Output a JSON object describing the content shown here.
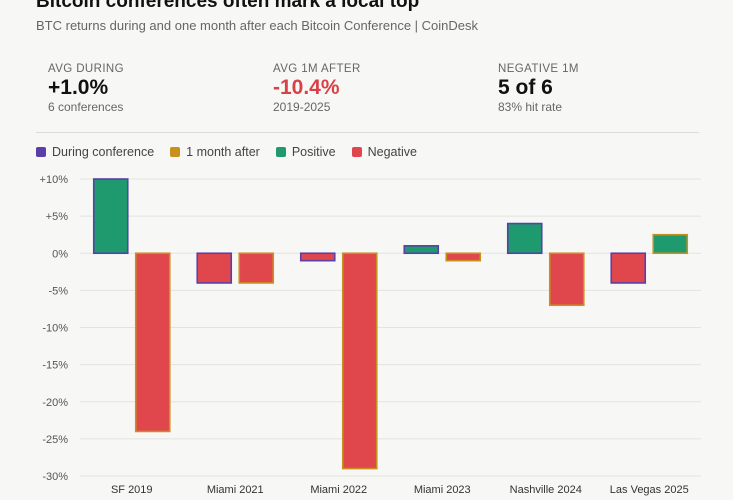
{
  "header": {
    "title": "Bitcoin conferences often mark a local top",
    "subtitle": "BTC returns during and one month after each Bitcoin Conference | CoinDesk"
  },
  "stats": [
    {
      "label": "AVG DURING",
      "value": "+1.0%",
      "sub": "6 conferences",
      "color": "#111111"
    },
    {
      "label": "AVG 1M AFTER",
      "value": "-10.4%",
      "sub": "2019-2025",
      "color": "#d94148"
    },
    {
      "label": "NEGATIVE 1M",
      "value": "5 of 6",
      "sub": "83% hit rate",
      "color": "#111111"
    }
  ],
  "legend": {
    "during": "During conference",
    "after": "1 month after",
    "positive": "Positive",
    "negative": "Negative"
  },
  "colors": {
    "positive": "#1f9a6e",
    "negative": "#e0474d",
    "during_outline": "#5a3fa8",
    "after_outline": "#c8901e",
    "grid": "#e3e3df"
  },
  "chart_data": {
    "type": "bar",
    "categories": [
      "SF 2019",
      "Miami 2021",
      "Miami 2022",
      "Miami 2023",
      "Nashville 2024",
      "Las Vegas 2025"
    ],
    "series": [
      {
        "name": "During conference",
        "values": [
          10,
          -4,
          -1,
          1,
          4,
          -4
        ]
      },
      {
        "name": "1 month after",
        "values": [
          -24,
          -4,
          -29,
          -1,
          -7,
          2.5
        ]
      }
    ],
    "ylim": [
      -30,
      10
    ],
    "yticks": [
      10,
      5,
      0,
      -5,
      -10,
      -15,
      -20,
      -25,
      -30
    ],
    "ytick_labels": [
      "+10%",
      "+5%",
      "0%",
      "-5%",
      "-10%",
      "-15%",
      "-20%",
      "-25%",
      "-30%"
    ],
    "grid": true
  }
}
